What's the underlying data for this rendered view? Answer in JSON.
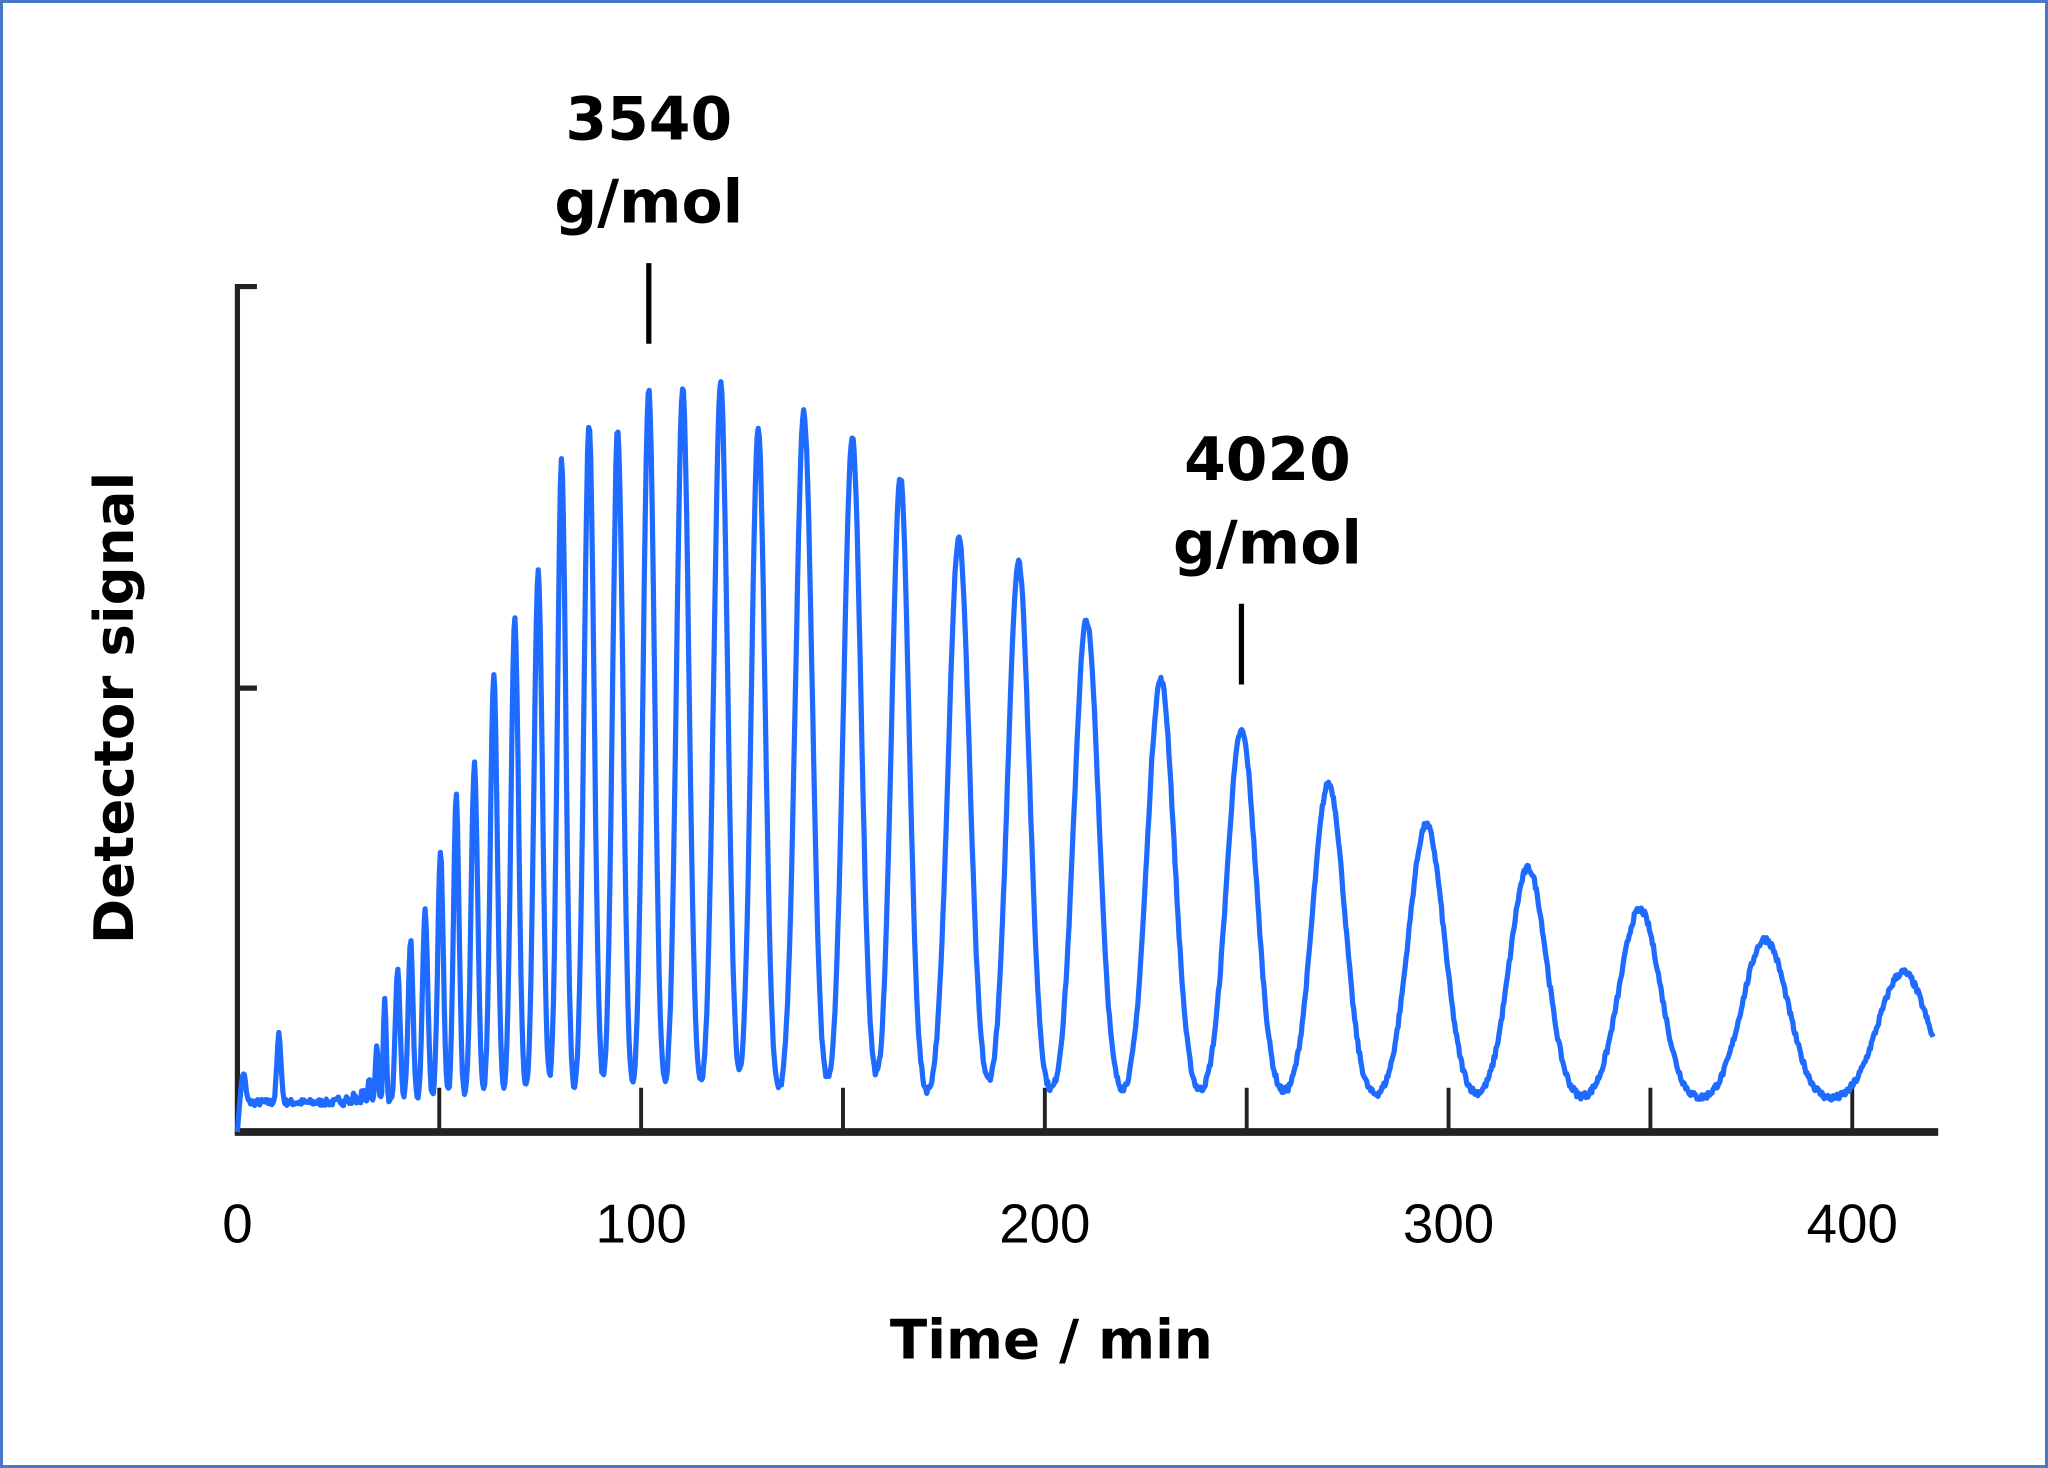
{
  "chart_data": {
    "type": "line",
    "title": "",
    "xlabel": "Time / min",
    "ylabel": "Detector signal",
    "xlim": [
      0,
      420
    ],
    "ylim": [
      0,
      1
    ],
    "x_ticks_major": [
      0,
      100,
      200,
      300,
      400
    ],
    "x_tick_labels": [
      "0",
      "100",
      "200",
      "300",
      "400"
    ],
    "x_ticks_minor": [
      50,
      150,
      250,
      350
    ],
    "y_ticks": [
      0.525,
      1.0
    ],
    "y_tick_labels_shown": false,
    "grid": false,
    "legend": "none",
    "line_color": "#1f6bff",
    "baseline_level": 0.035,
    "peaks": [
      {
        "time": 1.5,
        "height": 0.07
      },
      {
        "time": 10.3,
        "height": 0.115
      },
      {
        "time": 25.2,
        "height": 0.04
      },
      {
        "time": 27.1,
        "height": 0.04
      },
      {
        "time": 29.0,
        "height": 0.045
      },
      {
        "time": 31.0,
        "height": 0.05
      },
      {
        "time": 32.6,
        "height": 0.065
      },
      {
        "time": 34.5,
        "height": 0.105
      },
      {
        "time": 36.5,
        "height": 0.154
      },
      {
        "time": 39.7,
        "height": 0.192
      },
      {
        "time": 42.9,
        "height": 0.228
      },
      {
        "time": 46.5,
        "height": 0.262
      },
      {
        "time": 50.3,
        "height": 0.328
      },
      {
        "time": 54.2,
        "height": 0.397
      },
      {
        "time": 58.7,
        "height": 0.435
      },
      {
        "time": 63.5,
        "height": 0.543
      },
      {
        "time": 68.7,
        "height": 0.605
      },
      {
        "time": 74.5,
        "height": 0.662
      },
      {
        "time": 80.3,
        "height": 0.794
      },
      {
        "time": 87.1,
        "height": 0.838
      },
      {
        "time": 94.2,
        "height": 0.832
      },
      {
        "time": 101.9,
        "height": 0.877
      },
      {
        "time": 110.3,
        "height": 0.882
      },
      {
        "time": 119.7,
        "height": 0.885
      },
      {
        "time": 129.0,
        "height": 0.835
      },
      {
        "time": 140.3,
        "height": 0.851
      },
      {
        "time": 152.3,
        "height": 0.82
      },
      {
        "time": 164.2,
        "height": 0.774
      },
      {
        "time": 178.7,
        "height": 0.702
      },
      {
        "time": 193.5,
        "height": 0.674
      },
      {
        "time": 210.3,
        "height": 0.605
      },
      {
        "time": 228.7,
        "height": 0.535
      },
      {
        "time": 248.7,
        "height": 0.474
      },
      {
        "time": 270.3,
        "height": 0.412
      },
      {
        "time": 294.5,
        "height": 0.363
      },
      {
        "time": 319.7,
        "height": 0.312
      },
      {
        "time": 347.4,
        "height": 0.263
      },
      {
        "time": 378.4,
        "height": 0.228
      },
      {
        "time": 412.6,
        "height": 0.189
      }
    ],
    "annotations": [
      {
        "time": 101.9,
        "value": "3540",
        "unit": "g/mol"
      },
      {
        "time": 248.7,
        "value": "4020",
        "unit": "g/mol"
      }
    ]
  }
}
